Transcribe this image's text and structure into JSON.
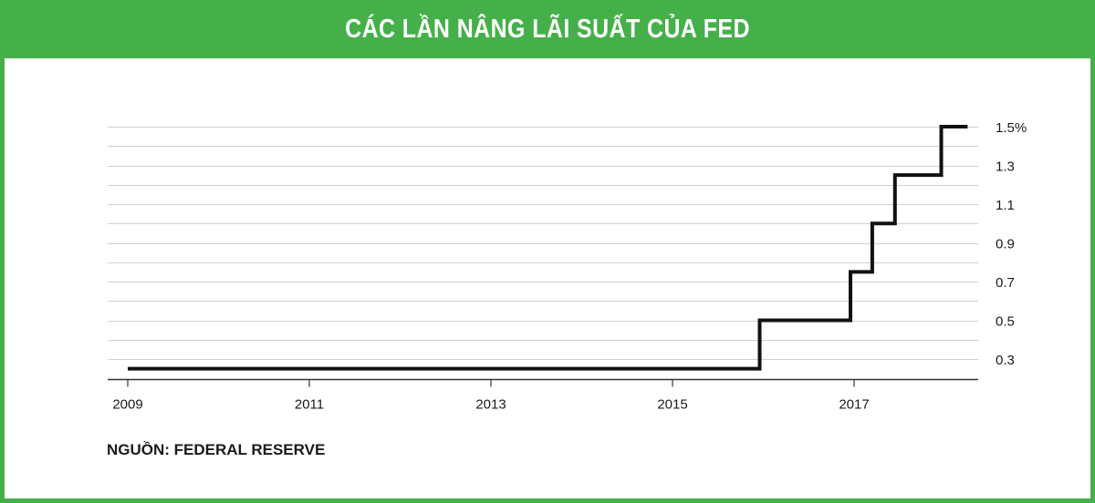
{
  "title": "CÁC LẦN NÂNG LÃI SUẤT CỦA FED",
  "source": "NGUỒN: FEDERAL RESERVE",
  "colors": {
    "accent": "#45b04a",
    "line": "#111111",
    "grid": "#d0d0d0"
  },
  "chart_data": {
    "type": "line",
    "step": true,
    "title": "CÁC LẦN NÂNG LÃI SUẤT CỦA FED",
    "xlabel": "",
    "ylabel": "",
    "xlim": [
      2009,
      2018.2
    ],
    "ylim": [
      0.25,
      1.5
    ],
    "grid": true,
    "y_axis_side": "right",
    "x_ticks": [
      "2009",
      "2011",
      "2013",
      "2015",
      "2017"
    ],
    "y_ticks": [
      {
        "value": 0.3,
        "label": "0.3"
      },
      {
        "value": 0.5,
        "label": "0.5"
      },
      {
        "value": 0.7,
        "label": "0.7"
      },
      {
        "value": 0.9,
        "label": "0.9"
      },
      {
        "value": 1.1,
        "label": "1.1"
      },
      {
        "value": 1.3,
        "label": "1.3"
      },
      {
        "value": 1.5,
        "label": "1.5%"
      }
    ],
    "series": [
      {
        "x": [
          2009.0,
          2015.96,
          2016.96,
          2017.2,
          2017.45,
          2017.96,
          2018.25
        ],
        "y": [
          0.25,
          0.5,
          0.75,
          1.0,
          1.25,
          1.5,
          1.5
        ]
      }
    ]
  }
}
